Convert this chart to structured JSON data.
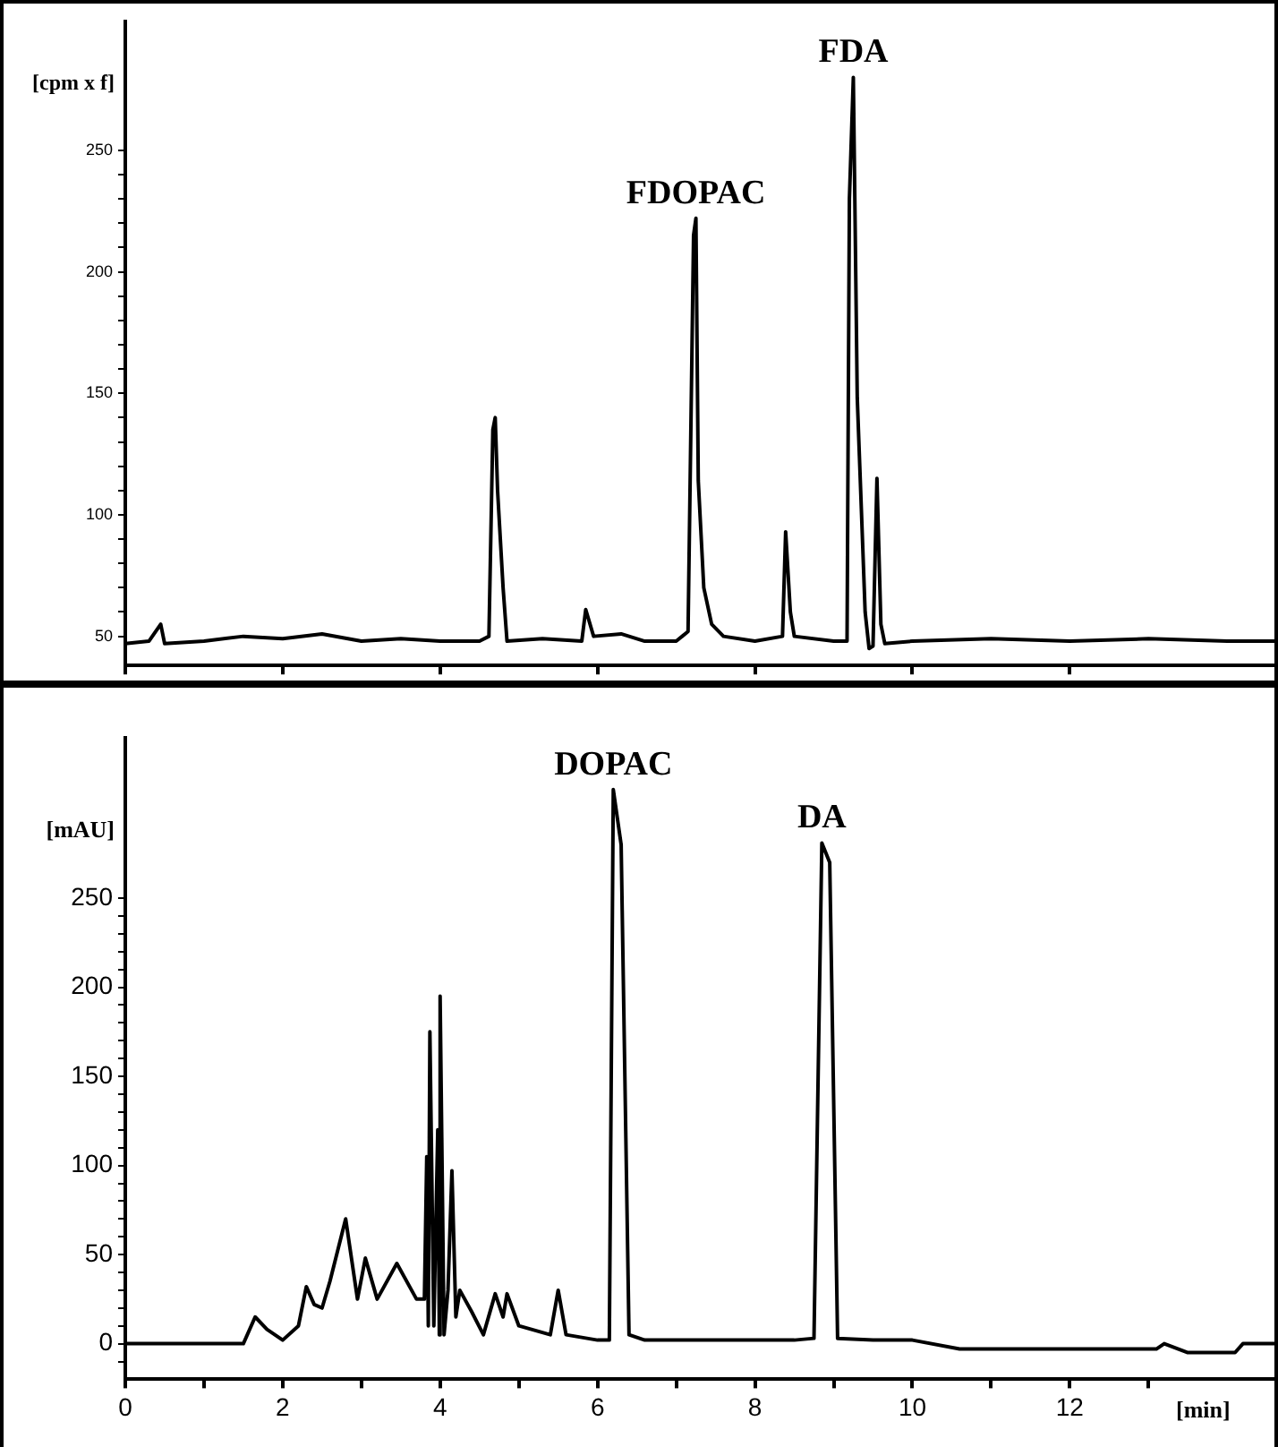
{
  "chart_data": [
    {
      "type": "line",
      "ylabel": "[cpm x f]",
      "xlim": [
        0,
        14.6
      ],
      "xticks": [
        {
          "value": 0,
          "label": null
        },
        {
          "value": 2,
          "label": null
        },
        {
          "value": 4,
          "label": null
        },
        {
          "value": 6,
          "label": null
        },
        {
          "value": 8,
          "label": null
        },
        {
          "value": 10,
          "label": null
        },
        {
          "value": 12,
          "label": null
        }
      ],
      "ylim": [
        38,
        303
      ],
      "yticks": [
        50,
        {
          "value": 60,
          "label": null
        },
        {
          "value": 70,
          "label": null
        },
        {
          "value": 80,
          "label": null
        },
        {
          "value": 90,
          "label": null
        },
        100,
        {
          "value": 110,
          "label": null
        },
        {
          "value": 120,
          "label": null
        },
        {
          "value": 130,
          "label": null
        },
        {
          "value": 140,
          "label": null
        },
        150,
        {
          "value": 160,
          "label": null
        },
        {
          "value": 170,
          "label": null
        },
        {
          "value": 180,
          "label": null
        },
        {
          "value": 190,
          "label": null
        },
        200,
        {
          "value": 210,
          "label": null
        },
        {
          "value": 220,
          "label": null
        },
        {
          "value": 230,
          "label": null
        },
        {
          "value": 240,
          "label": null
        },
        250
      ],
      "tick_labels": "y",
      "grid": false,
      "legend": false,
      "marker": "none",
      "line_style": "solid",
      "annotations": [
        {
          "text": "FDOPAC",
          "x": 7.25,
          "y": 222
        },
        {
          "text": "FDA",
          "x": 9.25,
          "y": 280
        }
      ],
      "series": [
        {
          "color": "#000000",
          "x": [
            0,
            0.3,
            0.45,
            0.5,
            1,
            1.5,
            2,
            2.5,
            3,
            3.5,
            4,
            4.5,
            4.62,
            4.67,
            4.7,
            4.73,
            4.8,
            4.85,
            5.3,
            5.8,
            5.85,
            5.95,
            6.3,
            6.6,
            7.0,
            7.15,
            7.22,
            7.25,
            7.28,
            7.35,
            7.45,
            7.6,
            8.0,
            8.35,
            8.39,
            8.45,
            8.5,
            9.0,
            9.17,
            9.2,
            9.25,
            9.3,
            9.4,
            9.45,
            9.5,
            9.55,
            9.6,
            9.65,
            10,
            11,
            12,
            13,
            14,
            14.6
          ],
          "values": [
            47,
            48,
            55,
            47,
            48,
            50,
            49,
            51,
            48,
            49,
            48,
            48,
            50,
            135,
            140,
            110,
            70,
            48,
            49,
            48,
            61,
            50,
            51,
            48,
            48,
            52,
            215,
            222,
            114,
            70,
            55,
            50,
            48,
            50,
            93,
            60,
            50,
            48,
            48,
            230,
            280,
            148,
            60,
            45,
            46,
            115,
            55,
            47,
            48,
            49,
            48,
            49,
            48,
            48
          ]
        }
      ]
    },
    {
      "type": "line",
      "ylabel": "[mAU]",
      "xlabel": "[min]",
      "xlim": [
        0,
        14.6
      ],
      "xticks": [
        0,
        {
          "value": 1,
          "label": null
        },
        2,
        {
          "value": 3,
          "label": null
        },
        4,
        {
          "value": 5,
          "label": null
        },
        6,
        {
          "value": 7,
          "label": null
        },
        8,
        {
          "value": 9,
          "label": null
        },
        10,
        {
          "value": 11,
          "label": null
        },
        12,
        {
          "value": 13,
          "label": null
        }
      ],
      "ylim": [
        -20,
        340
      ],
      "yticks": [
        {
          "value": -10,
          "label": null
        },
        0,
        {
          "value": 10,
          "label": null
        },
        {
          "value": 20,
          "label": null
        },
        {
          "value": 30,
          "label": null
        },
        {
          "value": 40,
          "label": null
        },
        50,
        {
          "value": 60,
          "label": null
        },
        {
          "value": 70,
          "label": null
        },
        {
          "value": 80,
          "label": null
        },
        {
          "value": 90,
          "label": null
        },
        100,
        {
          "value": 110,
          "label": null
        },
        {
          "value": 120,
          "label": null
        },
        {
          "value": 130,
          "label": null
        },
        {
          "value": 140,
          "label": null
        },
        150,
        {
          "value": 160,
          "label": null
        },
        {
          "value": 170,
          "label": null
        },
        {
          "value": 180,
          "label": null
        },
        {
          "value": 190,
          "label": null
        },
        200,
        {
          "value": 210,
          "label": null
        },
        {
          "value": 220,
          "label": null
        },
        {
          "value": 230,
          "label": null
        },
        {
          "value": 240,
          "label": null
        },
        250
      ],
      "grid": false,
      "legend": false,
      "marker": "none",
      "line_style": "solid",
      "annotations": [
        {
          "text": "DOPAC",
          "x": 6.2,
          "y": 311
        },
        {
          "text": "DA",
          "x": 8.85,
          "y": 281
        }
      ],
      "series": [
        {
          "color": "#000000",
          "x": [
            0,
            1.5,
            1.65,
            1.8,
            2.0,
            2.2,
            2.3,
            2.4,
            2.5,
            2.6,
            2.8,
            2.95,
            3.05,
            3.2,
            3.45,
            3.7,
            3.8,
            3.83,
            3.85,
            3.87,
            3.92,
            3.97,
            3.99,
            4.0,
            4.05,
            4.1,
            4.15,
            4.2,
            4.25,
            4.4,
            4.55,
            4.7,
            4.8,
            4.85,
            5.0,
            5.4,
            5.5,
            5.6,
            6.0,
            6.15,
            6.2,
            6.3,
            6.4,
            6.6,
            7.5,
            8.5,
            8.75,
            8.85,
            8.95,
            9.05,
            9.5,
            10,
            10.6,
            13.1,
            13.2,
            13.5,
            14.1,
            14.2,
            14.6
          ],
          "values": [
            0,
            0,
            15,
            8,
            2,
            10,
            32,
            22,
            20,
            35,
            70,
            25,
            48,
            25,
            45,
            25,
            25,
            105,
            10,
            175,
            10,
            120,
            5,
            195,
            5,
            30,
            97,
            15,
            30,
            18,
            5,
            28,
            15,
            28,
            10,
            5,
            30,
            5,
            2,
            2,
            311,
            280,
            5,
            2,
            2,
            2,
            3,
            281,
            270,
            3,
            2,
            2,
            -3,
            -3,
            0,
            -5,
            -5,
            0,
            0
          ]
        }
      ]
    }
  ]
}
